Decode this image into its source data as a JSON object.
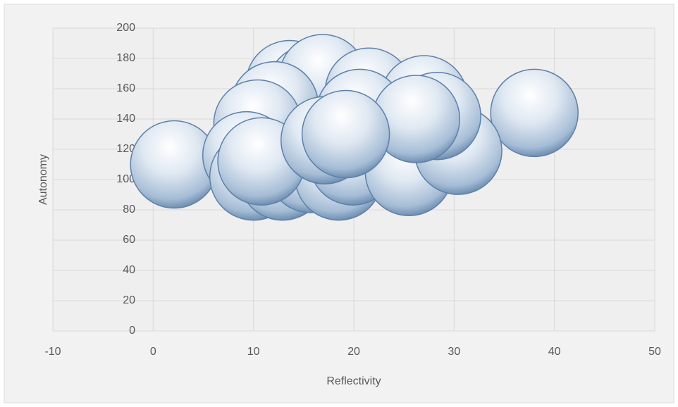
{
  "chart_data": {
    "type": "bubble",
    "xlabel": "Reflectivity",
    "ylabel": "Autonomy",
    "xlim": [
      -10,
      50
    ],
    "xticks": [
      -10,
      0,
      10,
      20,
      30,
      40,
      50
    ],
    "ylim": [
      0,
      200
    ],
    "yticks": [
      0,
      20,
      40,
      60,
      80,
      100,
      120,
      140,
      160,
      180,
      200
    ],
    "grid": true,
    "color": "#a9c4e0",
    "series": [
      {
        "name": "Autonomy",
        "x": [
          2.1,
          38,
          13.6,
          15.7,
          16.9,
          21.5,
          27,
          12.1,
          20.6,
          10.4,
          9.3,
          10,
          12.9,
          15.7,
          18.5,
          19.9,
          25.5,
          30.4,
          28.3,
          26.2,
          10.8,
          17.1,
          19.2
        ],
        "values": [
          110,
          144,
          163,
          160,
          167,
          158,
          153,
          149,
          144,
          137,
          116,
          102,
          102,
          107,
          102,
          112,
          105,
          119,
          142,
          140,
          112,
          126,
          130
        ],
        "size": [
          10,
          10,
          10,
          10,
          10,
          10,
          10,
          10,
          10,
          10,
          10,
          10,
          10,
          10,
          10,
          10,
          10,
          10,
          10,
          10,
          10,
          10,
          10
        ]
      }
    ]
  }
}
